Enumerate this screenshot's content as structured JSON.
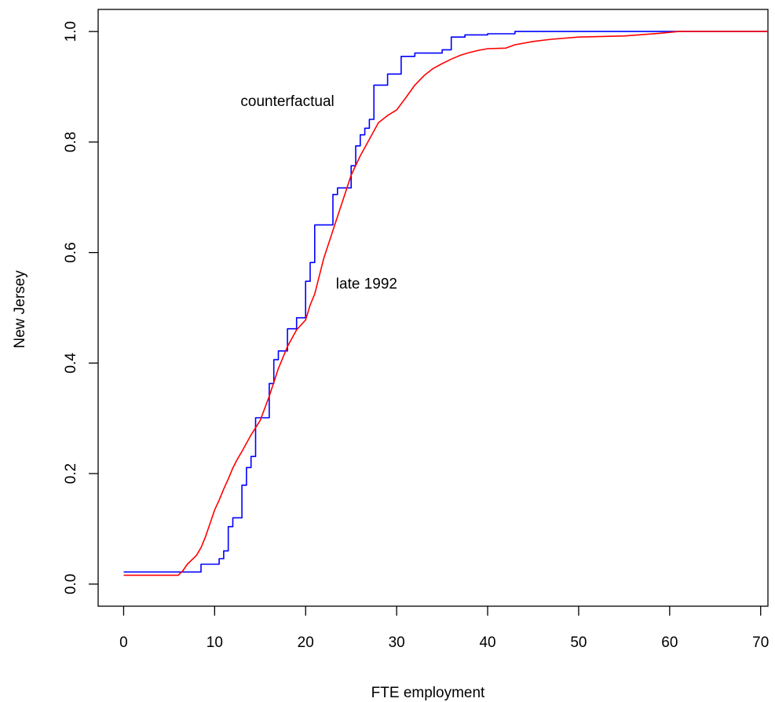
{
  "chart_data": {
    "type": "line",
    "title": "",
    "xlabel": "FTE employment",
    "ylabel": "New Jersey",
    "xlim": [
      -2.8,
      70.8
    ],
    "ylim": [
      -0.04,
      1.04
    ],
    "xticks": [
      0,
      10,
      20,
      30,
      40,
      50,
      60,
      70
    ],
    "xtick_labels": [
      "0",
      "10",
      "20",
      "30",
      "40",
      "50",
      "60",
      "70"
    ],
    "yticks": [
      0.0,
      0.2,
      0.4,
      0.6,
      0.8,
      1.0
    ],
    "ytick_labels": [
      "0.0",
      "0.2",
      "0.4",
      "0.6",
      "0.8",
      "1.0"
    ],
    "grid": false,
    "legend": "none",
    "annotations": [
      {
        "text": "counterfactual",
        "x": 18.0,
        "y": 0.875
      },
      {
        "text": "late 1992",
        "x": 26.7,
        "y": 0.545
      }
    ],
    "series": [
      {
        "color": "#0000ff",
        "step": true,
        "x": [
          0,
          8.5,
          10.5,
          11.0,
          11.5,
          12.0,
          13.0,
          13.5,
          14.0,
          14.5,
          16.0,
          16.5,
          17.0,
          18.0,
          19.0,
          20.0,
          20.5,
          21.0,
          23.0,
          23.5,
          25.0,
          25.5,
          26.0,
          26.5,
          27.0,
          27.5,
          29.0,
          30.5,
          32.0,
          35.0,
          36.0,
          37.5,
          40.0,
          43.0,
          50.0,
          60.0,
          71.0
        ],
        "y": [
          0.022,
          0.036,
          0.046,
          0.06,
          0.104,
          0.12,
          0.179,
          0.211,
          0.231,
          0.301,
          0.363,
          0.406,
          0.422,
          0.462,
          0.482,
          0.548,
          0.582,
          0.65,
          0.705,
          0.717,
          0.757,
          0.793,
          0.813,
          0.825,
          0.841,
          0.903,
          0.923,
          0.955,
          0.961,
          0.967,
          0.99,
          0.994,
          0.996,
          1.0,
          1.0,
          1.0,
          1.0
        ]
      },
      {
        "color": "#ff0000",
        "step": false,
        "x": [
          0,
          6.0,
          6.5,
          7.0,
          8.0,
          8.5,
          9.0,
          9.5,
          10.0,
          10.5,
          11.0,
          11.5,
          12.0,
          12.5,
          13.0,
          14.0,
          15.0,
          16.0,
          17.0,
          18.0,
          19.0,
          20.0,
          20.5,
          21.0,
          22.0,
          23.0,
          24.0,
          25.0,
          26.0,
          27.0,
          28.0,
          29.0,
          30.0,
          31.0,
          32.0,
          33.0,
          34.0,
          35.0,
          36.0,
          37.0,
          38.0,
          39.0,
          40.0,
          42.0,
          43.0,
          45.0,
          47.0,
          50.0,
          55.0,
          59.0,
          61.0,
          65.0,
          71.0
        ],
        "y": [
          0.016,
          0.016,
          0.024,
          0.036,
          0.052,
          0.066,
          0.086,
          0.11,
          0.134,
          0.152,
          0.172,
          0.19,
          0.21,
          0.226,
          0.24,
          0.27,
          0.296,
          0.34,
          0.39,
          0.43,
          0.46,
          0.478,
          0.505,
          0.525,
          0.59,
          0.64,
          0.69,
          0.74,
          0.775,
          0.805,
          0.835,
          0.848,
          0.858,
          0.88,
          0.903,
          0.92,
          0.933,
          0.942,
          0.95,
          0.957,
          0.962,
          0.966,
          0.969,
          0.97,
          0.976,
          0.982,
          0.986,
          0.99,
          0.992,
          0.997,
          1.0,
          1.0,
          1.0
        ]
      }
    ]
  }
}
